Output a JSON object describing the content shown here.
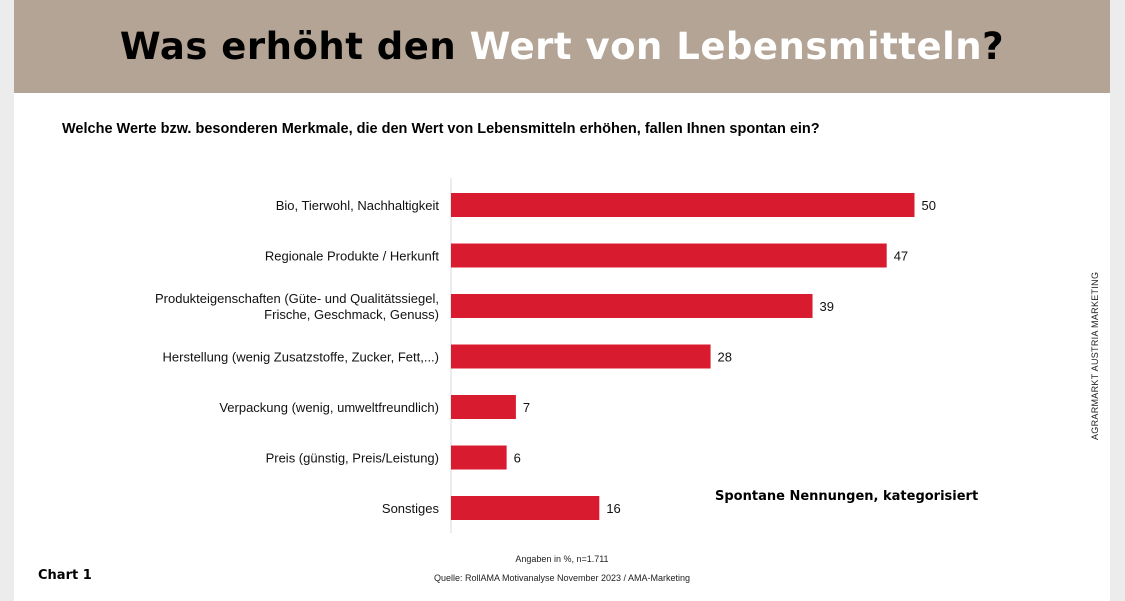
{
  "banner": {
    "title_part1": "Was erhöht den ",
    "title_part2": "Wert von ",
    "title_part3": "Lebensmitteln",
    "title_part4": "?"
  },
  "question": "Welche Werte bzw. besonderen Merkmale, die den Wert von Lebensmitteln erhöhen, fallen Ihnen spontan ein?",
  "chart_data": {
    "type": "bar",
    "orientation": "horizontal",
    "categories": [
      [
        "Bio, Tierwohl, Nachhaltigkeit"
      ],
      [
        "Regionale Produkte / Herkunft"
      ],
      [
        "Produkteigenschaften (Güte- und Qualitätssiegel,",
        "Frische, Geschmack, Genuss)"
      ],
      [
        "Herstellung (wenig Zusatzstoffe, Zucker, Fett,...)"
      ],
      [
        "Verpackung (wenig, umweltfreundlich)"
      ],
      [
        "Preis (günstig, Preis/Leistung)"
      ],
      [
        "Sonstiges"
      ]
    ],
    "values": [
      50,
      47,
      39,
      28,
      7,
      6,
      16
    ],
    "bar_color": "#d81b2f",
    "note": "Spontane Nennungen, kategorisiert"
  },
  "side_text": "AGRARMARKT AUSTRIA MARKETING",
  "footnote_1": "Angaben in %, n=1.711",
  "footnote_2": "Quelle: RollAMA Motivanalyse November 2023 / AMA-Marketing",
  "chart_number": "Chart 1"
}
